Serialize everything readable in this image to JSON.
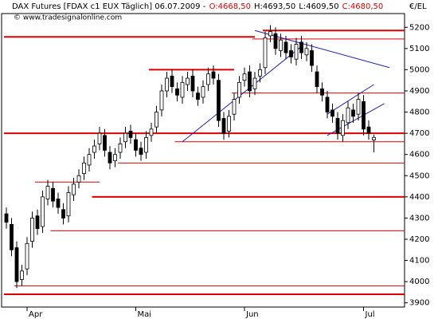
{
  "chart_data": {
    "type": "candlestick",
    "title": "DAX Futures [FDAX c1 EUX  Täglich] 06.07.2009 -",
    "quote_labels": [
      "O:4668,50",
      "H:4693,50",
      "L:4609,50",
      "C:4680,50"
    ],
    "quote_label_colors": [
      "#e00000",
      "#000000",
      "#000000",
      "#e00000"
    ],
    "copyright": "© www.tradesignalonline.com",
    "unit_label": "€/EL",
    "categories": [
      null,
      null,
      null,
      null,
      "Apr",
      null,
      null,
      null,
      null,
      null,
      null,
      null,
      null,
      null,
      null,
      null,
      null,
      null,
      null,
      null,
      null,
      null,
      null,
      null,
      null,
      "Mai",
      null,
      null,
      null,
      null,
      null,
      null,
      null,
      null,
      null,
      null,
      null,
      null,
      null,
      null,
      null,
      null,
      null,
      null,
      null,
      null,
      "Jun",
      null,
      null,
      null,
      null,
      null,
      null,
      null,
      null,
      null,
      null,
      null,
      null,
      null,
      null,
      null,
      null,
      null,
      null,
      null,
      null,
      null,
      null,
      "Jul",
      null,
      null
    ],
    "open": [
      4320,
      4270,
      4160,
      4010,
      4060,
      4190,
      4310,
      4260,
      4390,
      4440,
      4390,
      4340,
      4310,
      4410,
      4470,
      4510,
      4550,
      4610,
      4650,
      4690,
      4610,
      4570,
      4610,
      4660,
      4710,
      4670,
      4630,
      4610,
      4690,
      4730,
      4810,
      4900,
      4970,
      4910,
      4870,
      4930,
      4970,
      4890,
      4870,
      4930,
      4990,
      4950,
      4770,
      4710,
      4790,
      4870,
      4950,
      4990,
      4910,
      4970,
      5010,
      5160,
      5170,
      5090,
      5130,
      5090,
      5050,
      5130,
      5070,
      5090,
      4990,
      4910,
      4870,
      4810,
      4770,
      4690,
      4750,
      4810,
      4790,
      4850,
      4730,
      4668.5
    ],
    "high": [
      4350,
      4300,
      4190,
      4080,
      4210,
      4330,
      4340,
      4430,
      4480,
      4470,
      4420,
      4370,
      4450,
      4490,
      4530,
      4590,
      4630,
      4670,
      4730,
      4720,
      4640,
      4630,
      4680,
      4730,
      4740,
      4700,
      4660,
      4710,
      4750,
      4830,
      4930,
      4990,
      5000,
      4940,
      4970,
      4990,
      5000,
      4920,
      4950,
      5010,
      5020,
      4980,
      4800,
      4810,
      4890,
      4970,
      5010,
      5020,
      4990,
      5030,
      5180,
      5210,
      5200,
      5170,
      5160,
      5120,
      5150,
      5160,
      5130,
      5120,
      5020,
      4940,
      4900,
      4840,
      4800,
      4790,
      4850,
      4840,
      4890,
      4880,
      4760,
      4693.5
    ],
    "low": [
      4250,
      4120,
      3970,
      3980,
      4030,
      4160,
      4220,
      4230,
      4360,
      4350,
      4320,
      4270,
      4280,
      4380,
      4440,
      4480,
      4520,
      4580,
      4620,
      4590,
      4530,
      4540,
      4580,
      4630,
      4650,
      4590,
      4570,
      4580,
      4660,
      4700,
      4780,
      4870,
      4890,
      4850,
      4840,
      4900,
      4870,
      4830,
      4840,
      4900,
      4930,
      4730,
      4670,
      4680,
      4760,
      4840,
      4920,
      4870,
      4880,
      4940,
      4980,
      5130,
      5070,
      5060,
      5050,
      5030,
      5020,
      5050,
      5040,
      4990,
      4890,
      4850,
      4770,
      4750,
      4670,
      4660,
      4720,
      4750,
      4760,
      4690,
      4670,
      4609.5
    ],
    "close": [
      4280,
      4150,
      4000,
      4050,
      4180,
      4300,
      4250,
      4400,
      4450,
      4380,
      4350,
      4300,
      4420,
      4460,
      4500,
      4560,
      4600,
      4640,
      4700,
      4620,
      4560,
      4600,
      4650,
      4700,
      4680,
      4620,
      4600,
      4680,
      4720,
      4800,
      4900,
      4960,
      4920,
      4880,
      4940,
      4960,
      4900,
      4860,
      4920,
      4980,
      4960,
      4760,
      4700,
      4780,
      4860,
      4940,
      4980,
      4900,
      4960,
      5000,
      5150,
      5180,
      5100,
      5140,
      5080,
      5060,
      5120,
      5080,
      5100,
      5020,
      4920,
      4880,
      4800,
      4780,
      4700,
      4760,
      4820,
      4780,
      4860,
      4720,
      4700,
      4680.5
    ],
    "up_color": "#ffffff",
    "down_color": "#000000",
    "ylim": [
      3880,
      5265
    ],
    "yticks": [
      3900,
      4000,
      4100,
      4200,
      4300,
      4400,
      4500,
      4600,
      4700,
      4800,
      4900,
      5000,
      5100,
      5200
    ],
    "level_color": "#e00000",
    "levels": [
      {
        "value": 5185,
        "start": 50,
        "width": 2
      },
      {
        "value": 5155,
        "start": 0,
        "end": 48,
        "width": 2
      },
      {
        "value": 5145,
        "start": 48,
        "width": 1
      },
      {
        "value": 5000,
        "start": 28,
        "end": 44,
        "width": 2
      },
      {
        "value": 4890,
        "start": 44,
        "width": 1
      },
      {
        "value": 4700,
        "start": 0,
        "width": 2
      },
      {
        "value": 4660,
        "start": 33,
        "width": 1
      },
      {
        "value": 4560,
        "start": 22,
        "width": 1
      },
      {
        "value": 4470,
        "start": 6,
        "end": 18,
        "width": 1
      },
      {
        "value": 4400,
        "start": 17,
        "width": 2
      },
      {
        "value": 4240,
        "start": 9,
        "width": 1
      },
      {
        "value": 3980,
        "start": 2,
        "width": 1
      },
      {
        "value": 3940,
        "start": 0,
        "width": 2
      }
    ],
    "trend_color": "#2020c0",
    "trendlines": [
      {
        "start": [
          34,
          4660
        ],
        "end": [
          57,
          5110
        ]
      },
      {
        "start": [
          48,
          5185
        ],
        "end": [
          74,
          5010
        ]
      },
      {
        "start": [
          62,
          4690
        ],
        "end": [
          73,
          4840
        ]
      },
      {
        "start": [
          62,
          4790
        ],
        "end": [
          71,
          4930
        ]
      }
    ]
  }
}
